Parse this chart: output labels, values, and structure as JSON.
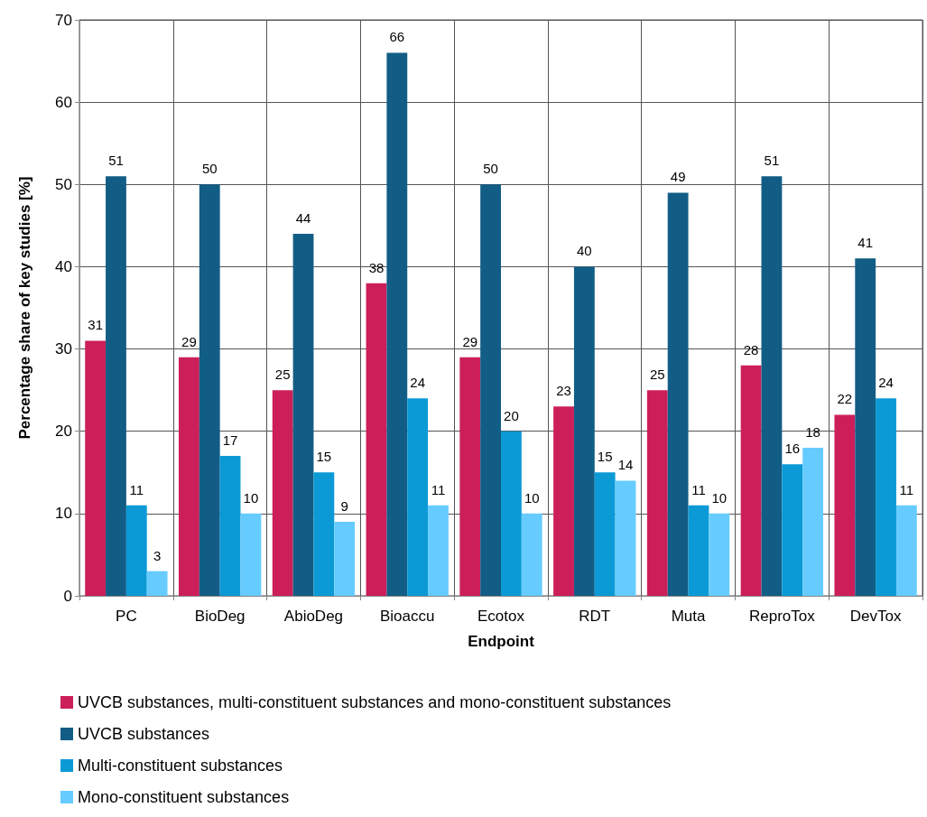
{
  "chart_data": {
    "type": "bar",
    "xlabel": "Endpoint",
    "ylabel": "Percentage share of key studies [%]",
    "categories": [
      "PC",
      "BioDeg",
      "AbioDeg",
      "Bioaccu",
      "Ecotox",
      "RDT",
      "Muta",
      "ReproTox",
      "DevTox"
    ],
    "series": [
      {
        "name": "UVCB substances, multi-constituent substances and mono-constituent substances",
        "color": "#cc1f5a",
        "values": [
          31,
          29,
          25,
          38,
          29,
          23,
          25,
          28,
          22
        ]
      },
      {
        "name": "UVCB substances",
        "color": "#125d85",
        "values": [
          51,
          50,
          44,
          66,
          50,
          40,
          49,
          51,
          41
        ]
      },
      {
        "name": "Multi-constituent substances",
        "color": "#0b9ad6",
        "values": [
          11,
          17,
          15,
          24,
          20,
          15,
          11,
          16,
          24
        ]
      },
      {
        "name": "Mono-constituent substances",
        "color": "#66ccff",
        "values": [
          3,
          10,
          9,
          11,
          10,
          14,
          10,
          18,
          11
        ]
      }
    ],
    "ylim": [
      0,
      70
    ],
    "yticks": [
      0,
      10,
      20,
      30,
      40,
      50,
      60,
      70
    ],
    "grid": true,
    "legend": "bottom",
    "data_labels": true
  }
}
